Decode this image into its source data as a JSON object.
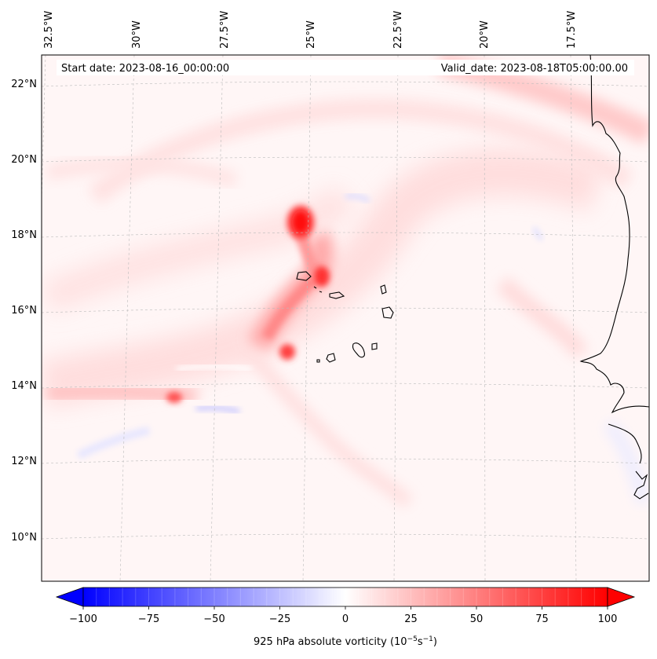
{
  "header": {
    "start_date": "Start date: 2023-08-16_00:00:00",
    "valid_date": "Valid_date: 2023-08-18T05:00:00.00"
  },
  "longitude_labels": [
    "32.5°W",
    "30°W",
    "27.5°W",
    "25°W",
    "22.5°W",
    "20°W",
    "17.5°W"
  ],
  "latitude_labels": [
    "22°N",
    "20°N",
    "18°N",
    "16°N",
    "14°N",
    "12°N",
    "10°N"
  ],
  "colorbar": {
    "label": "925 hPa absolute vorticity (10",
    "exp1": "−5",
    "mid": "s",
    "exp2": "−1",
    "close": ")",
    "ticks": [
      "−100",
      "−75",
      "−50",
      "−25",
      "0",
      "25",
      "50",
      "75",
      "100"
    ],
    "range": [
      -100,
      100
    ],
    "colors": {
      "negative": "#0000ff",
      "zero": "#ffffff",
      "positive": "#ff0000"
    }
  },
  "map": {
    "variable": "925 hPa absolute vorticity",
    "grid": true,
    "coastline_color": "#000000"
  }
}
